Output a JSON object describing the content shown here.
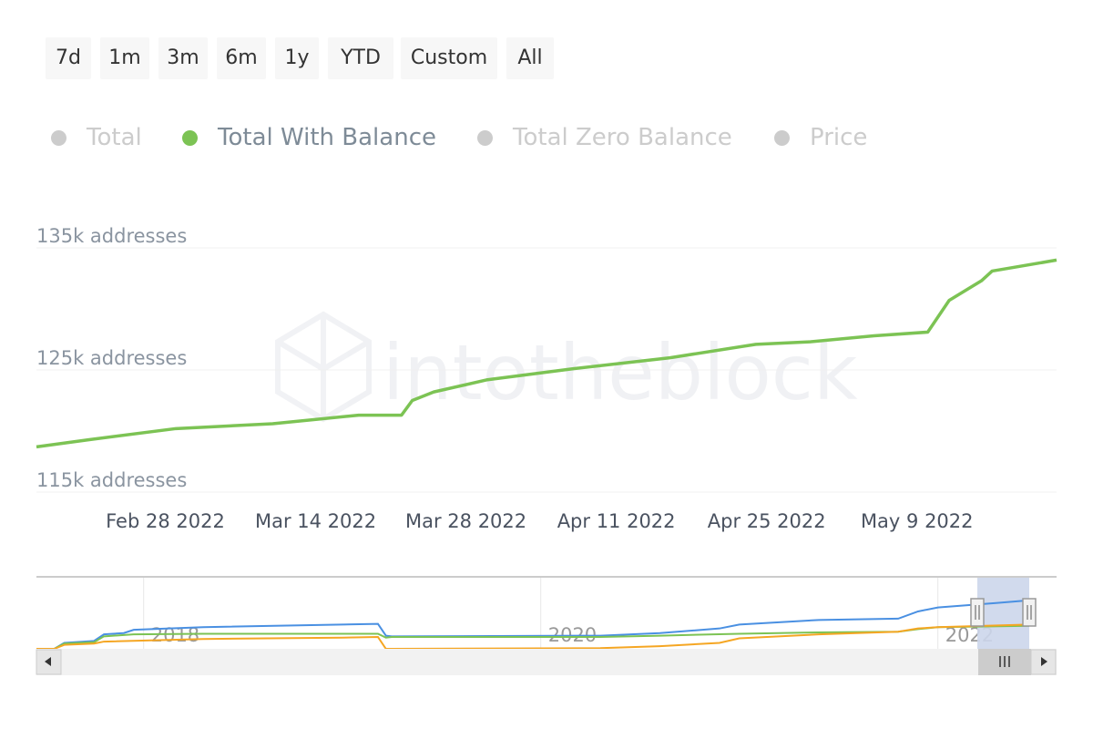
{
  "range_selector": {
    "buttons": [
      "7d",
      "1m",
      "3m",
      "6m",
      "1y",
      "YTD",
      "Custom",
      "All"
    ]
  },
  "legend": {
    "items": [
      {
        "label": "Total",
        "active": false
      },
      {
        "label": "Total With Balance",
        "active": true
      },
      {
        "label": "Total Zero Balance",
        "active": false
      },
      {
        "label": "Price",
        "active": false
      }
    ]
  },
  "watermark": "intotheblock",
  "colors": {
    "total": "#4a90e2",
    "with_balance": "#7cc354",
    "zero_balance": "#f5a623",
    "inactive": "#cccccc",
    "navigator_mask": "#ccd6eb"
  },
  "chart_data": {
    "type": "line",
    "title": "",
    "xlabel": "",
    "ylabel": "",
    "ylim": [
      115000,
      135000
    ],
    "y_ticks": [
      {
        "value": 115000,
        "label": "115k addresses"
      },
      {
        "value": 125000,
        "label": "125k addresses"
      },
      {
        "value": 135000,
        "label": "135k addresses"
      }
    ],
    "x_range": [
      "2022-02-16",
      "2022-05-22"
    ],
    "x_ticks": [
      {
        "date": "2022-02-28",
        "label": "Feb 28 2022"
      },
      {
        "date": "2022-03-14",
        "label": "Mar 14 2022"
      },
      {
        "date": "2022-03-28",
        "label": "Mar 28 2022"
      },
      {
        "date": "2022-04-11",
        "label": "Apr 11 2022"
      },
      {
        "date": "2022-04-25",
        "label": "Apr 25 2022"
      },
      {
        "date": "2022-05-09",
        "label": "May 9 2022"
      }
    ],
    "grid": true,
    "series": [
      {
        "name": "Total With Balance",
        "points": [
          [
            "2022-02-16",
            118700
          ],
          [
            "2022-02-21",
            119300
          ],
          [
            "2022-03-01",
            120200
          ],
          [
            "2022-03-10",
            120600
          ],
          [
            "2022-03-18",
            121300
          ],
          [
            "2022-03-22",
            121300
          ],
          [
            "2022-03-23",
            122500
          ],
          [
            "2022-03-25",
            123200
          ],
          [
            "2022-03-30",
            124200
          ],
          [
            "2022-04-07",
            125100
          ],
          [
            "2022-04-16",
            126000
          ],
          [
            "2022-04-24",
            127100
          ],
          [
            "2022-04-29",
            127300
          ],
          [
            "2022-05-05",
            127800
          ],
          [
            "2022-05-10",
            128100
          ],
          [
            "2022-05-12",
            130700
          ],
          [
            "2022-05-15",
            132300
          ],
          [
            "2022-05-16",
            133100
          ],
          [
            "2022-05-18",
            133400
          ],
          [
            "2022-05-22",
            134000
          ]
        ]
      }
    ],
    "navigator": {
      "x_ticks": [
        {
          "year": 2018,
          "label": "2018"
        },
        {
          "year": 2020,
          "label": "2020"
        },
        {
          "year": 2022,
          "label": "2022"
        }
      ],
      "x_range": [
        2017.46,
        2022.46
      ],
      "selected_range": [
        "2022-02-16",
        "2022-05-22"
      ],
      "series": [
        {
          "name": "Total",
          "points": [
            [
              2017.46,
              0
            ],
            [
              2017.55,
              0
            ],
            [
              2017.6,
              9
            ],
            [
              2017.75,
              12
            ],
            [
              2017.8,
              22
            ],
            [
              2017.9,
              24
            ],
            [
              2017.95,
              29
            ],
            [
              2018.3,
              33
            ],
            [
              2019.0,
              37
            ],
            [
              2019.18,
              38
            ],
            [
              2019.22,
              20
            ],
            [
              2019.25,
              19
            ],
            [
              2020.3,
              20
            ],
            [
              2020.6,
              24
            ],
            [
              2020.9,
              31
            ],
            [
              2021.0,
              37
            ],
            [
              2021.4,
              44
            ],
            [
              2021.8,
              46
            ],
            [
              2021.9,
              57
            ],
            [
              2022.0,
              63
            ],
            [
              2022.3,
              70
            ],
            [
              2022.46,
              74
            ]
          ]
        },
        {
          "name": "Total With Balance",
          "points": [
            [
              2017.46,
              0
            ],
            [
              2017.55,
              0
            ],
            [
              2017.6,
              8
            ],
            [
              2017.75,
              10
            ],
            [
              2017.8,
              19
            ],
            [
              2017.95,
              22
            ],
            [
              2018.3,
              23
            ],
            [
              2019.18,
              23
            ],
            [
              2019.22,
              17
            ],
            [
              2019.25,
              18
            ],
            [
              2020.3,
              18
            ],
            [
              2020.6,
              20
            ],
            [
              2021.0,
              23
            ],
            [
              2021.4,
              25
            ],
            [
              2021.8,
              26
            ],
            [
              2021.9,
              30
            ],
            [
              2022.0,
              33
            ],
            [
              2022.46,
              35
            ]
          ]
        },
        {
          "name": "Total Zero Balance",
          "points": [
            [
              2017.46,
              0
            ],
            [
              2017.55,
              0
            ],
            [
              2017.6,
              6
            ],
            [
              2017.75,
              8
            ],
            [
              2017.8,
              11
            ],
            [
              2018.3,
              15
            ],
            [
              2019.0,
              17
            ],
            [
              2019.18,
              18
            ],
            [
              2019.22,
              0
            ],
            [
              2019.25,
              0
            ],
            [
              2020.3,
              1
            ],
            [
              2020.6,
              4
            ],
            [
              2020.9,
              9
            ],
            [
              2021.0,
              16
            ],
            [
              2021.4,
              22
            ],
            [
              2021.8,
              26
            ],
            [
              2021.9,
              31
            ],
            [
              2022.0,
              33
            ],
            [
              2022.46,
              37
            ]
          ]
        }
      ]
    }
  }
}
